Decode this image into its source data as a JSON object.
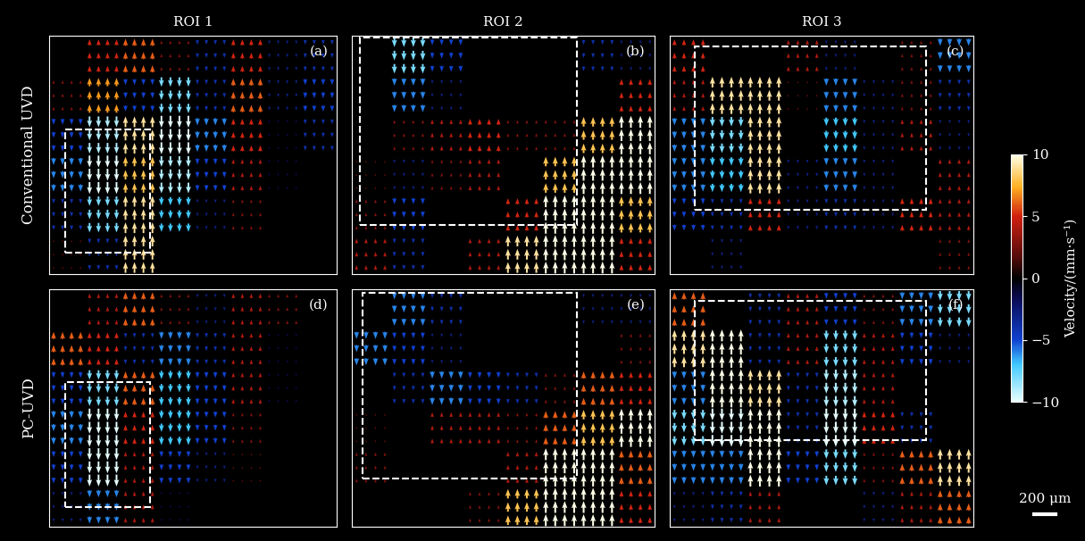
{
  "chart_data": {
    "type": "vector_field",
    "columns": [
      "ROI 1",
      "ROI 2",
      "ROI 3"
    ],
    "rows": [
      "Conventional UVD",
      "PC-UVD"
    ],
    "panels": [
      {
        "label": "(a)",
        "velocity_grid": [
          [
            0,
            5,
            6,
            3,
            -4,
            5,
            -3,
            -4
          ],
          [
            3,
            7,
            -5,
            -8,
            -4,
            6,
            -3,
            -5
          ],
          [
            -5,
            -9,
            9,
            -10,
            -6,
            5,
            -2,
            -4
          ],
          [
            -6,
            -10,
            8,
            -9,
            -5,
            4,
            -2,
            0
          ],
          [
            -4,
            -8,
            9,
            -7,
            -3,
            3,
            0,
            0
          ],
          [
            2,
            -4,
            9,
            0,
            0,
            0,
            0,
            0
          ]
        ]
      },
      {
        "label": "(b)",
        "velocity_grid": [
          [
            0,
            -8,
            -5,
            0,
            0,
            0,
            -4,
            -3
          ],
          [
            0,
            -6,
            -3,
            0,
            0,
            0,
            0,
            5
          ],
          [
            0,
            3,
            4,
            5,
            3,
            3,
            8,
            10
          ],
          [
            2,
            -3,
            3,
            4,
            0,
            8,
            10,
            10
          ],
          [
            3,
            -5,
            0,
            0,
            5,
            10,
            10,
            8
          ],
          [
            4,
            -4,
            0,
            4,
            9,
            10,
            10,
            5
          ]
        ]
      },
      {
        "label": "(c)",
        "velocity_grid": [
          [
            5,
            0,
            0,
            4,
            -3,
            0,
            3,
            -6
          ],
          [
            4,
            9,
            9,
            2,
            -6,
            -3,
            3,
            -4
          ],
          [
            -6,
            -8,
            9,
            0,
            -7,
            -3,
            4,
            -3
          ],
          [
            -6,
            -7,
            9,
            -3,
            -6,
            -3,
            0,
            4
          ],
          [
            -5,
            -4,
            5,
            -3,
            -4,
            -3,
            5,
            4
          ],
          [
            0,
            -3,
            0,
            0,
            0,
            0,
            0,
            3
          ]
        ]
      },
      {
        "label": "(d)",
        "velocity_grid": [
          [
            0,
            4,
            6,
            3,
            -3,
            4,
            3,
            0
          ],
          [
            6,
            5,
            -4,
            -6,
            -4,
            4,
            -2,
            0
          ],
          [
            -5,
            -8,
            6,
            -7,
            -5,
            4,
            -2,
            0
          ],
          [
            -6,
            -10,
            5,
            -7,
            -5,
            3,
            0,
            0
          ],
          [
            -5,
            -10,
            4,
            -5,
            -3,
            2,
            0,
            0
          ],
          [
            -3,
            -6,
            4,
            -2,
            0,
            0,
            0,
            0
          ]
        ]
      },
      {
        "label": "(e)",
        "velocity_grid": [
          [
            0,
            -6,
            -4,
            0,
            0,
            0,
            -3,
            -3
          ],
          [
            -6,
            -5,
            -3,
            0,
            0,
            0,
            0,
            3
          ],
          [
            0,
            -4,
            -6,
            -5,
            -4,
            3,
            6,
            5
          ],
          [
            2,
            0,
            4,
            4,
            3,
            6,
            8,
            10
          ],
          [
            3,
            0,
            0,
            0,
            4,
            10,
            10,
            6
          ],
          [
            0,
            0,
            0,
            3,
            8,
            10,
            10,
            5
          ]
        ]
      },
      {
        "label": "(f)",
        "velocity_grid": [
          [
            6,
            0,
            -4,
            4,
            -5,
            3,
            -6,
            -8
          ],
          [
            9,
            10,
            -4,
            4,
            -8,
            4,
            -5,
            -3
          ],
          [
            -6,
            10,
            9,
            -4,
            -9,
            4,
            0,
            0
          ],
          [
            -8,
            -10,
            10,
            -4,
            -10,
            5,
            -4,
            0
          ],
          [
            -6,
            -6,
            10,
            -5,
            -8,
            3,
            6,
            9
          ],
          [
            -3,
            -4,
            4,
            0,
            0,
            -3,
            4,
            6
          ]
        ]
      }
    ],
    "colorbar": {
      "label": "Velocity/(mm·s⁻¹)",
      "range": [
        -10,
        10
      ],
      "ticks": [
        10,
        5,
        0,
        {
          "value": -5,
          "label": "−5"
        },
        {
          "value": -10,
          "label": "−10"
        }
      ]
    },
    "scale_bar": "200 μm"
  }
}
